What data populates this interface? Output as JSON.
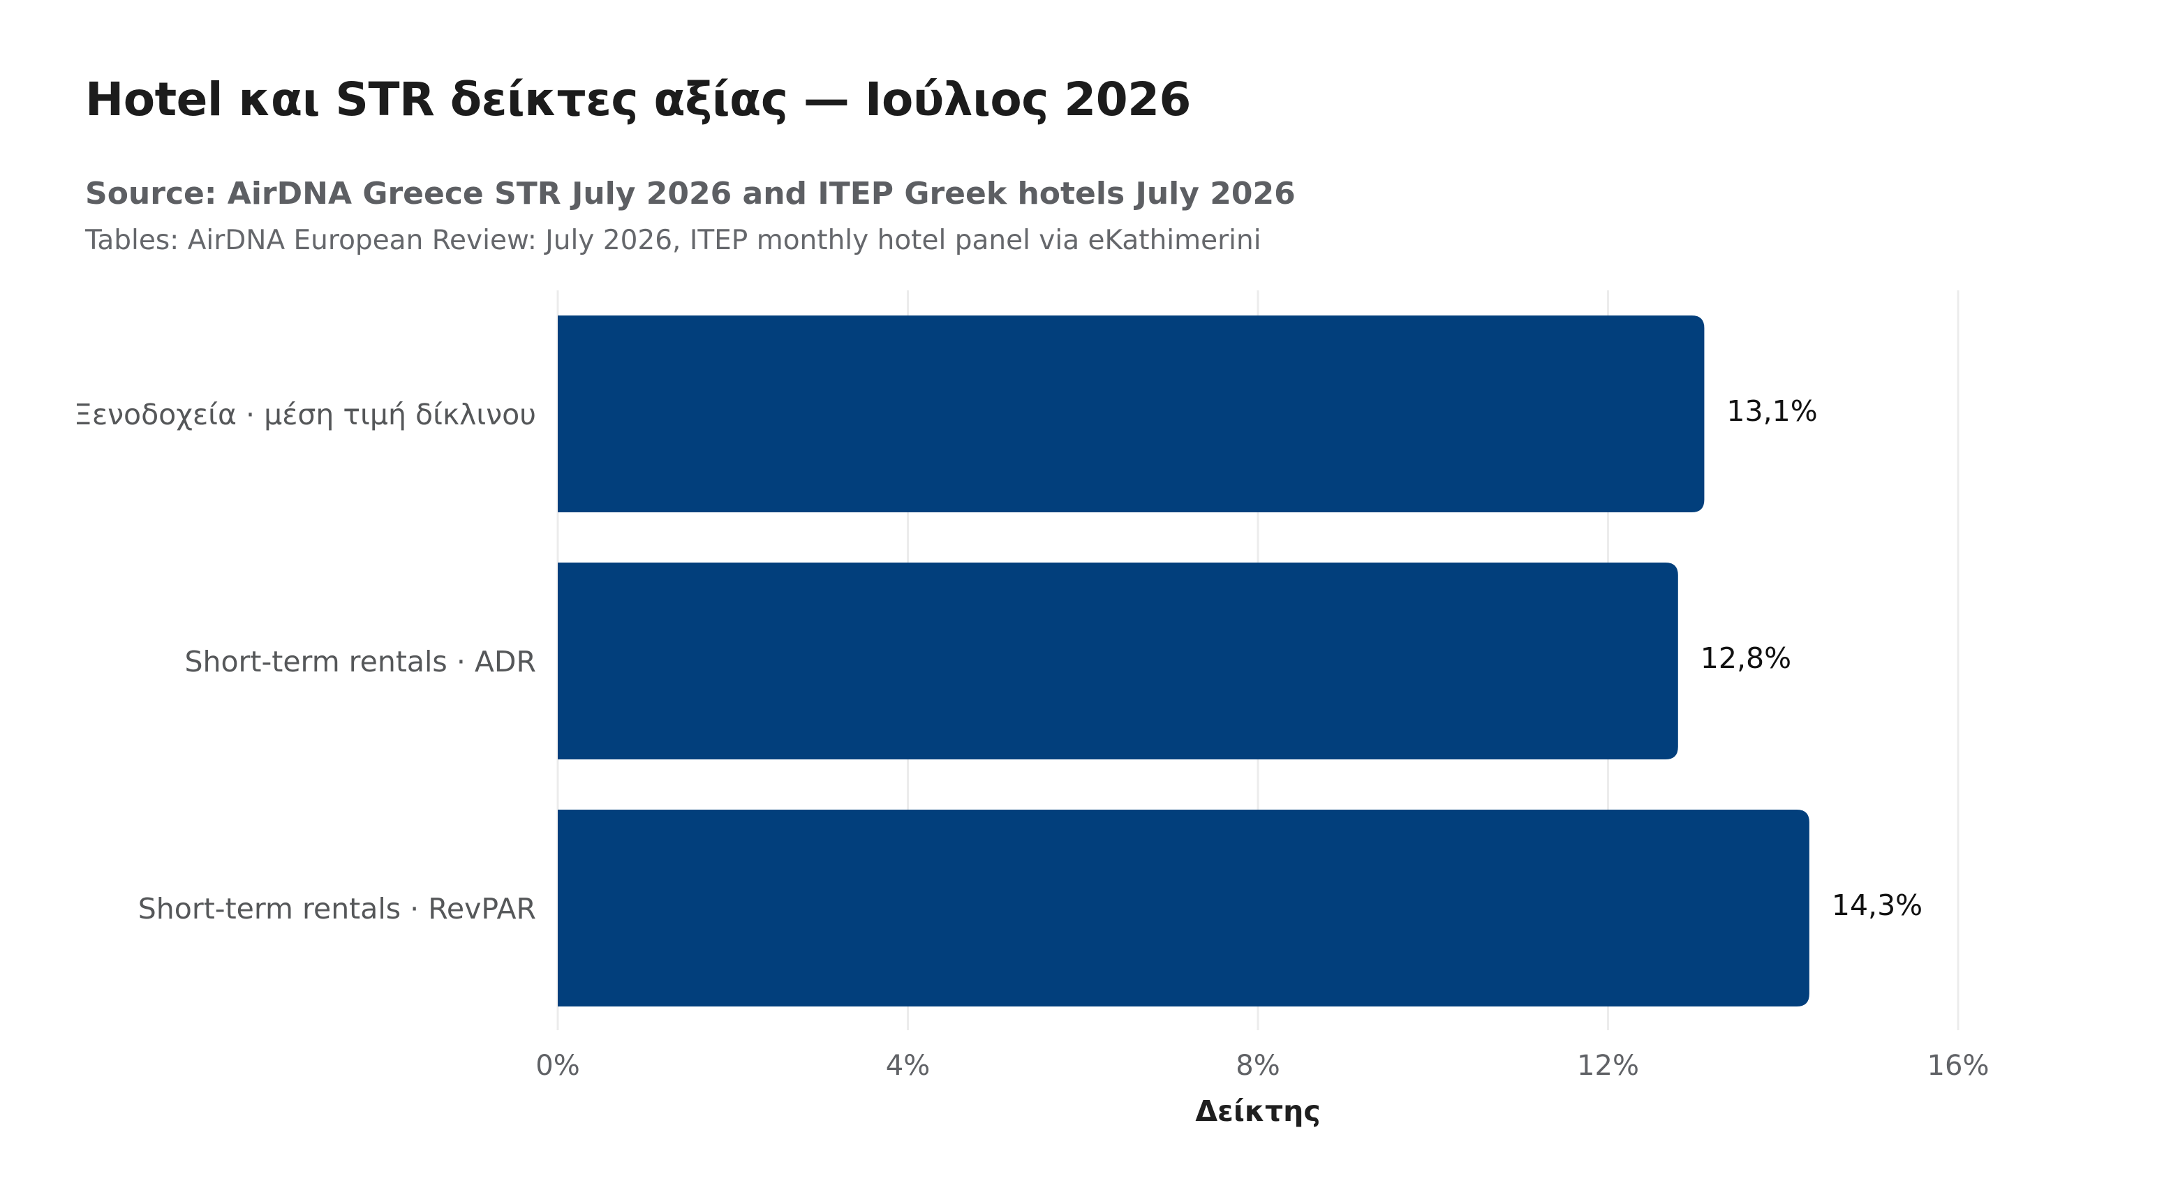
{
  "chart_data": {
    "type": "bar",
    "orientation": "horizontal",
    "title": "Hotel και STR δείκτες αξίας — Ιούλιος 2026",
    "subtitle": "Source: AirDNA Greece STR July 2026 and ITEP Greek hotels July 2026",
    "caption": "Tables: AirDNA European Review: July 2026, ITEP monthly hotel panel via eKathimerini",
    "categories": [
      "Ξενοδοχεία · μέση τιμή δίκλινου",
      "Short-term rentals · ADR",
      "Short-term rentals · RevPAR"
    ],
    "values": [
      13.1,
      12.8,
      14.3
    ],
    "value_labels": [
      "13,1%",
      "12,8%",
      "14,3%"
    ],
    "xlabel": "Δείκτης",
    "ylabel": "",
    "xlim": [
      0,
      16
    ],
    "ticks": [
      0,
      4,
      8,
      12,
      16
    ],
    "tick_labels": [
      "0%",
      "4%",
      "8%",
      "12%",
      "16%"
    ],
    "grid": "vertical",
    "bar_color": "#023f7c",
    "grid_color": "#ececec"
  }
}
